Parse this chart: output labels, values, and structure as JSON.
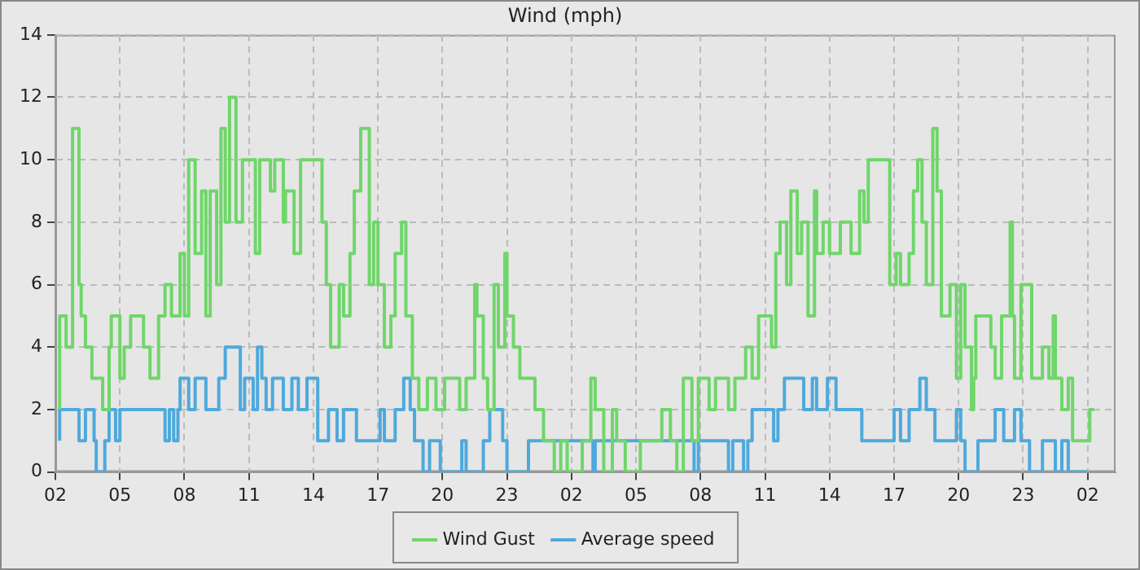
{
  "chart_data": {
    "type": "step",
    "title": "Wind (mph)",
    "xlim": [
      "--01-01T02:00",
      "--01-03T03:18"
    ],
    "xticks": [
      {
        "value": "--01-01T02:00",
        "label": "02"
      },
      {
        "value": "--01-01T05:00",
        "label": "05"
      },
      {
        "value": "--01-01T08:00",
        "label": "08"
      },
      {
        "value": "--01-01T11:00",
        "label": "11"
      },
      {
        "value": "--01-01T14:00",
        "label": "14"
      },
      {
        "value": "--01-01T17:00",
        "label": "17"
      },
      {
        "value": "--01-01T20:00",
        "label": "20"
      },
      {
        "value": "--01-01T23:00",
        "label": "23"
      },
      {
        "value": "--01-02T02:00",
        "label": "02"
      },
      {
        "value": "--01-02T05:00",
        "label": "05"
      },
      {
        "value": "--01-02T08:00",
        "label": "08"
      },
      {
        "value": "--01-02T11:00",
        "label": "11"
      },
      {
        "value": "--01-02T14:00",
        "label": "14"
      },
      {
        "value": "--01-02T17:00",
        "label": "17"
      },
      {
        "value": "--01-02T20:00",
        "label": "20"
      },
      {
        "value": "--01-02T23:00",
        "label": "23"
      },
      {
        "value": "--01-03T02:00",
        "label": "02"
      }
    ],
    "ylim": [
      0,
      14
    ],
    "yticks": [
      0,
      2,
      4,
      6,
      8,
      10,
      12,
      14
    ],
    "grid": true,
    "legend": "bottom",
    "series": [
      {
        "name": "Wind Gust",
        "color": "#6fd66a",
        "x": [
          "--01-01T02:12",
          "--01-01T02:30",
          "--01-01T02:48",
          "--01-01T03:06",
          "--01-01T03:12",
          "--01-01T03:24",
          "--01-01T03:42",
          "--01-01T04:12",
          "--01-01T04:30",
          "--01-01T04:36",
          "--01-01T05:00",
          "--01-01T05:12",
          "--01-01T05:30",
          "--01-01T06:06",
          "--01-01T06:24",
          "--01-01T06:48",
          "--01-01T07:06",
          "--01-01T07:24",
          "--01-01T07:48",
          "--01-01T08:00",
          "--01-01T08:12",
          "--01-01T08:30",
          "--01-01T08:48",
          "--01-01T09:00",
          "--01-01T09:12",
          "--01-01T09:30",
          "--01-01T09:42",
          "--01-01T09:54",
          "--01-01T10:06",
          "--01-01T10:24",
          "--01-01T10:42",
          "--01-01T11:18",
          "--01-01T11:30",
          "--01-01T12:00",
          "--01-01T12:12",
          "--01-01T12:36",
          "--01-01T12:42",
          "--01-01T13:06",
          "--01-01T13:24",
          "--01-01T14:24",
          "--01-01T14:36",
          "--01-01T14:48",
          "--01-01T15:12",
          "--01-01T15:24",
          "--01-01T15:42",
          "--01-01T15:54",
          "--01-01T16:12",
          "--01-01T16:36",
          "--01-01T16:48",
          "--01-01T17:00",
          "--01-01T17:18",
          "--01-01T17:36",
          "--01-01T17:48",
          "--01-01T18:06",
          "--01-01T18:18",
          "--01-01T18:36",
          "--01-01T18:54",
          "--01-01T19:18",
          "--01-01T19:42",
          "--01-01T20:06",
          "--01-01T20:48",
          "--01-01T21:06",
          "--01-01T21:30",
          "--01-01T21:36",
          "--01-01T21:54",
          "--01-01T22:06",
          "--01-01T22:24",
          "--01-01T22:36",
          "--01-01T22:54",
          "--01-01T23:00",
          "--01-01T23:18",
          "--01-01T23:36",
          "--01-02T00:18",
          "--01-02T00:42",
          "--01-02T01:12",
          "--01-02T01:30",
          "--01-02T01:48",
          "--01-02T02:30",
          "--01-02T02:54",
          "--01-02T03:06",
          "--01-02T03:30",
          "--01-02T03:54",
          "--01-02T04:06",
          "--01-02T04:30",
          "--01-02T05:12",
          "--01-02T06:12",
          "--01-02T06:36",
          "--01-02T06:54",
          "--01-02T07:12",
          "--01-02T07:36",
          "--01-02T07:54",
          "--01-02T08:24",
          "--01-02T08:42",
          "--01-02T09:18",
          "--01-02T09:36",
          "--01-02T10:06",
          "--01-02T10:24",
          "--01-02T10:42",
          "--01-02T11:18",
          "--01-02T11:30",
          "--01-02T11:42",
          "--01-02T12:00",
          "--01-02T12:12",
          "--01-02T12:30",
          "--01-02T12:42",
          "--01-02T13:00",
          "--01-02T13:18",
          "--01-02T13:24",
          "--01-02T13:42",
          "--01-02T14:00",
          "--01-02T14:30",
          "--01-02T15:00",
          "--01-02T15:24",
          "--01-02T15:36",
          "--01-02T15:48",
          "--01-02T16:48",
          "--01-02T17:06",
          "--01-02T17:18",
          "--01-02T17:42",
          "--01-02T17:54",
          "--01-02T18:06",
          "--01-02T18:18",
          "--01-02T18:30",
          "--01-02T18:48",
          "--01-02T19:00",
          "--01-02T19:12",
          "--01-02T19:36",
          "--01-02T19:54",
          "--01-02T20:06",
          "--01-02T20:18",
          "--01-02T20:36",
          "--01-02T20:42",
          "--01-02T20:48",
          "--01-02T21:30",
          "--01-02T21:42",
          "--01-02T22:00",
          "--01-02T22:24",
          "--01-02T22:30",
          "--01-02T22:36",
          "--01-02T22:54",
          "--01-02T23:24",
          "--01-02T23:54",
          "--01-03T00:12",
          "--01-03T00:24",
          "--01-03T00:30",
          "--01-03T00:48",
          "--01-03T01:06",
          "--01-03T01:18",
          "--01-03T02:06",
          "--01-03T02:12",
          "--01-03T02:18"
        ],
        "values": [
          2,
          5,
          4,
          11,
          6,
          5,
          4,
          3,
          2,
          4,
          5,
          3,
          4,
          5,
          4,
          3,
          5,
          6,
          5,
          7,
          5,
          10,
          7,
          9,
          5,
          9,
          6,
          11,
          8,
          12,
          8,
          10,
          7,
          10,
          9,
          10,
          8,
          9,
          7,
          10,
          8,
          6,
          4,
          6,
          5,
          7,
          9,
          11,
          6,
          8,
          6,
          4,
          5,
          7,
          8,
          5,
          3,
          2,
          3,
          2,
          3,
          2,
          3,
          6,
          5,
          3,
          2,
          6,
          4,
          7,
          5,
          4,
          3,
          2,
          1,
          0,
          1,
          0,
          1,
          3,
          2,
          0,
          2,
          1,
          0,
          1,
          2,
          1,
          0,
          3,
          1,
          3,
          2,
          3,
          2,
          3,
          4,
          3,
          5,
          4,
          7,
          8,
          6,
          9,
          7,
          8,
          5,
          9,
          7,
          8,
          7,
          8,
          7,
          9,
          8,
          10,
          6,
          7,
          6,
          7,
          9,
          10,
          8,
          6,
          11,
          9,
          5,
          6,
          3,
          6,
          4,
          2,
          3,
          5,
          4,
          3,
          5,
          8,
          5,
          3,
          6,
          3,
          4,
          3,
          5,
          3,
          2,
          3,
          1,
          2,
          2
        ]
      },
      {
        "name": "Average speed",
        "color": "#4ea9dc",
        "x": [
          "--01-01T02:12",
          "--01-01T03:06",
          "--01-01T03:24",
          "--01-01T03:48",
          "--01-01T03:54",
          "--01-01T04:18",
          "--01-01T04:30",
          "--01-01T04:48",
          "--01-01T05:00",
          "--01-01T07:06",
          "--01-01T07:18",
          "--01-01T07:30",
          "--01-01T07:42",
          "--01-01T07:48",
          "--01-01T08:12",
          "--01-01T08:30",
          "--01-01T09:00",
          "--01-01T09:36",
          "--01-01T09:54",
          "--01-01T10:36",
          "--01-01T10:48",
          "--01-01T11:12",
          "--01-01T11:24",
          "--01-01T11:36",
          "--01-01T11:48",
          "--01-01T12:06",
          "--01-01T12:36",
          "--01-01T13:00",
          "--01-01T13:18",
          "--01-01T13:42",
          "--01-01T14:12",
          "--01-01T14:42",
          "--01-01T15:06",
          "--01-01T15:24",
          "--01-01T16:00",
          "--01-01T17:06",
          "--01-01T17:18",
          "--01-01T17:48",
          "--01-01T18:12",
          "--01-01T18:30",
          "--01-01T18:42",
          "--01-01T19:06",
          "--01-01T19:24",
          "--01-01T19:54",
          "--01-01T20:54",
          "--01-01T21:06",
          "--01-01T21:54",
          "--01-01T22:12",
          "--01-01T22:48",
          "--01-01T23:00",
          "--01-02T00:00",
          "--01-02T03:00",
          "--01-02T03:06",
          "--01-02T07:42",
          "--01-02T07:54",
          "--01-02T09:18",
          "--01-02T09:30",
          "--01-02T10:00",
          "--01-02T10:12",
          "--01-02T10:24",
          "--01-02T11:24",
          "--01-02T11:36",
          "--01-02T11:54",
          "--01-02T12:48",
          "--01-02T13:12",
          "--01-02T13:24",
          "--01-02T13:54",
          "--01-02T14:18",
          "--01-02T15:30",
          "--01-02T17:00",
          "--01-02T17:18",
          "--01-02T17:42",
          "--01-02T18:12",
          "--01-02T18:30",
          "--01-02T18:54",
          "--01-02T19:54",
          "--01-02T20:06",
          "--01-02T20:18",
          "--01-02T20:54",
          "--01-02T21:42",
          "--01-02T22:06",
          "--01-02T22:36",
          "--01-02T22:54",
          "--01-02T23:18",
          "--01-02T23:54",
          "--01-03T00:30",
          "--01-03T00:48",
          "--01-03T01:06",
          "--01-03T01:36",
          "--01-03T02:00"
        ],
        "values": [
          1,
          2,
          1,
          2,
          1,
          0,
          1,
          2,
          1,
          2,
          1,
          2,
          1,
          2,
          3,
          2,
          3,
          2,
          3,
          4,
          2,
          3,
          2,
          4,
          3,
          2,
          3,
          2,
          3,
          2,
          3,
          1,
          2,
          1,
          2,
          1,
          2,
          1,
          2,
          3,
          2,
          1,
          0,
          1,
          0,
          1,
          0,
          1,
          2,
          1,
          0,
          1,
          0,
          1,
          0,
          1,
          0,
          1,
          0,
          1,
          2,
          1,
          2,
          3,
          2,
          3,
          2,
          3,
          2,
          1,
          2,
          1,
          2,
          3,
          2,
          1,
          2,
          1,
          0,
          1,
          2,
          1,
          2,
          1,
          0,
          1,
          0,
          1,
          0,
          0
        ]
      }
    ]
  }
}
